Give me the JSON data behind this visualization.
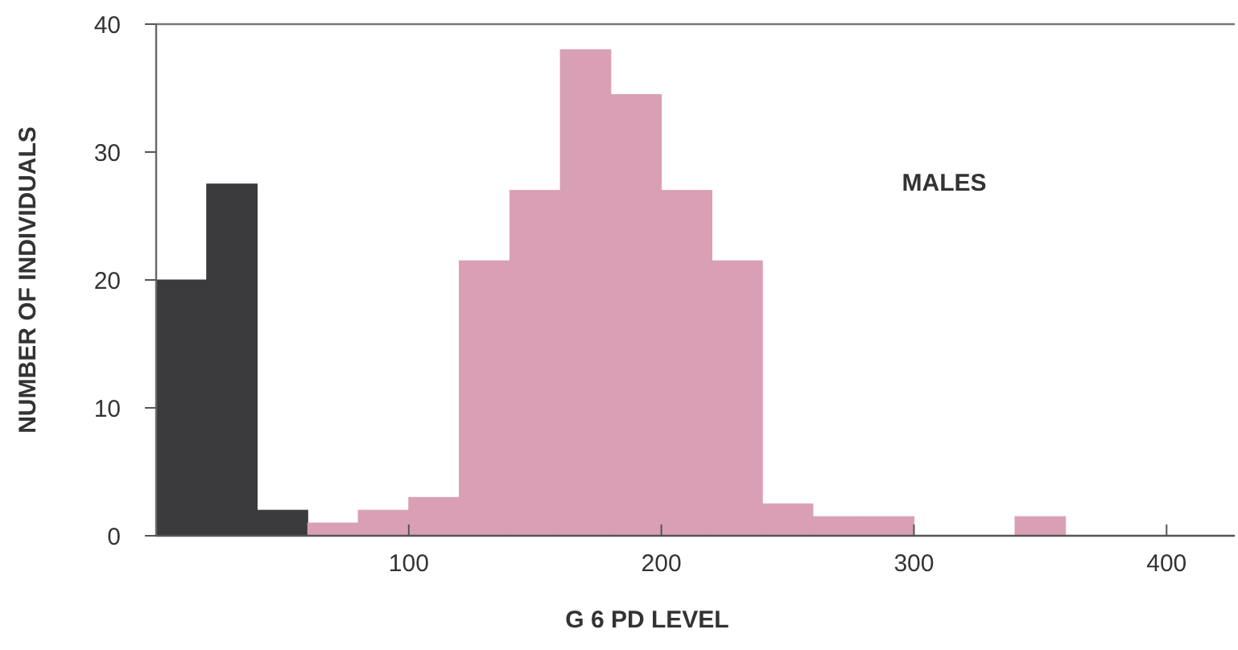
{
  "chart_data": {
    "type": "histogram",
    "xlabel": "G 6 PD LEVEL",
    "ylabel": "NUMBER OF INDIVIDUALS",
    "annotations": [
      "MALES"
    ],
    "bins": [
      0,
      20,
      40,
      60,
      80,
      100,
      120,
      140,
      160,
      180,
      200,
      220,
      240,
      260,
      280,
      300,
      320,
      340,
      360,
      380,
      400
    ],
    "values": [
      20,
      27.5,
      2,
      1,
      2,
      3,
      21.5,
      27,
      38,
      34.5,
      27,
      21.5,
      2.5,
      1.5,
      1.5,
      0,
      0,
      1.5,
      0,
      0
    ],
    "colors": [
      "#3b3a3c",
      "#3b3a3c",
      "#3b3a3c",
      "#d99fb4",
      "#d99fb4",
      "#d99fb4",
      "#d99fb4",
      "#d99fb4",
      "#d99fb4",
      "#d99fb4",
      "#d99fb4",
      "#d99fb4",
      "#d99fb4",
      "#d99fb4",
      "#d99fb4",
      "#d99fb4",
      "#d99fb4",
      "#d99fb4",
      "#d99fb4",
      "#d99fb4"
    ],
    "xlim": [
      0,
      427
    ],
    "xticks": [
      100,
      200,
      300,
      400
    ],
    "ylim": [
      0,
      40
    ],
    "yticks": [
      0,
      10,
      20,
      30,
      40
    ],
    "grid": false
  }
}
